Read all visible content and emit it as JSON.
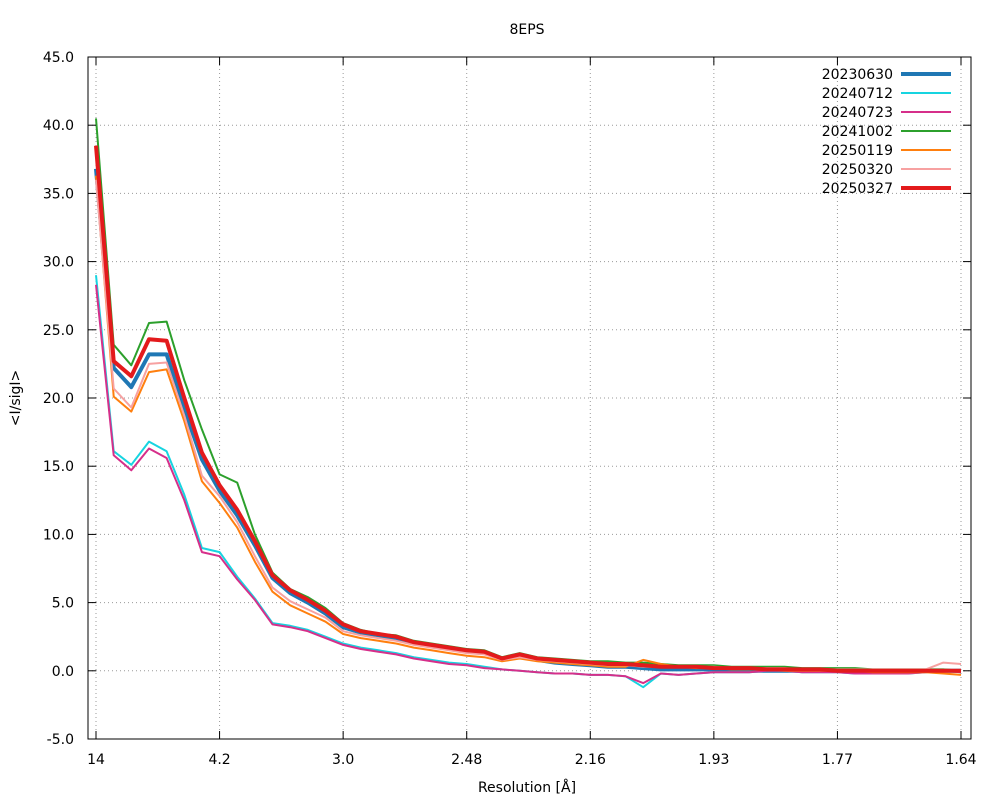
{
  "chart_data": {
    "type": "line",
    "title": "8EPS",
    "xlabel": "Resolution [Å]",
    "ylabel": "<I/sigI>",
    "ylim": [
      -5.0,
      45.0
    ],
    "yticks": [
      "-5.0",
      "0.0",
      "5.0",
      "10.0",
      "15.0",
      "20.0",
      "25.0",
      "30.0",
      "35.0",
      "40.0",
      "45.0"
    ],
    "xticks": [
      "14",
      "4.2",
      "3.0",
      "2.48",
      "2.16",
      "1.93",
      "1.77",
      "1.64"
    ],
    "grid": true,
    "legend_position": "top-right",
    "x": [
      "14",
      "",
      "",
      "",
      "",
      "4.2",
      "",
      "",
      "",
      "",
      "3.0",
      "",
      "",
      "",
      "",
      "2.48",
      "",
      "",
      "",
      "",
      "2.16",
      "",
      "",
      "",
      "",
      "",
      "",
      "",
      "",
      "",
      "",
      "",
      "",
      "",
      "",
      "",
      "",
      "",
      "",
      "",
      "",
      "",
      "",
      "",
      "",
      "",
      "",
      "",
      "",
      "1.64"
    ],
    "series": [
      {
        "name": "20230630",
        "color": "#1f77b4",
        "width": "thick",
        "values": [
          36.8,
          22.2,
          20.8,
          23.2,
          23.2,
          19.2,
          15.5,
          13.2,
          11.4,
          9.2,
          6.8,
          5.7,
          5.0,
          4.2,
          3.2,
          2.8,
          2.6,
          2.4,
          2.1,
          1.9,
          1.7,
          1.5,
          1.4,
          0.9,
          1.1,
          0.8,
          0.6,
          0.5,
          0.4,
          0.3,
          0.3,
          0.2,
          0.1,
          0.1,
          0.1,
          0.1,
          0.0,
          0.0,
          0.0,
          0.0,
          0.0,
          0.0,
          0.0,
          0.0,
          0.0,
          0.0,
          0.0,
          0.0,
          0.0,
          0.0
        ]
      },
      {
        "name": "20240712",
        "color": "#17d4e0",
        "width": "thin",
        "values": [
          29.0,
          16.1,
          15.1,
          16.8,
          16.1,
          12.9,
          9.0,
          8.7,
          6.9,
          5.3,
          3.5,
          3.3,
          3.0,
          2.5,
          2.0,
          1.7,
          1.5,
          1.3,
          1.0,
          0.8,
          0.6,
          0.5,
          0.3,
          0.1,
          0.0,
          -0.1,
          -0.2,
          -0.2,
          -0.3,
          -0.3,
          -0.4,
          -1.2,
          -0.2,
          -0.3,
          -0.2,
          -0.1,
          -0.1,
          -0.1,
          0.0,
          0.0,
          -0.1,
          -0.1,
          -0.1,
          -0.2,
          -0.2,
          -0.2,
          -0.2,
          -0.1,
          0.0,
          -0.1
        ]
      },
      {
        "name": "20240723",
        "color": "#d62f8a",
        "width": "thin",
        "values": [
          28.3,
          15.8,
          14.7,
          16.3,
          15.6,
          12.5,
          8.7,
          8.4,
          6.7,
          5.2,
          3.4,
          3.2,
          2.9,
          2.4,
          1.9,
          1.6,
          1.4,
          1.2,
          0.9,
          0.7,
          0.5,
          0.4,
          0.2,
          0.1,
          0.0,
          -0.1,
          -0.2,
          -0.2,
          -0.3,
          -0.3,
          -0.4,
          -0.9,
          -0.2,
          -0.3,
          -0.2,
          -0.1,
          -0.1,
          -0.1,
          0.0,
          0.0,
          -0.1,
          -0.1,
          -0.1,
          -0.2,
          -0.2,
          -0.2,
          -0.2,
          -0.1,
          0.0,
          -0.1
        ]
      },
      {
        "name": "20241002",
        "color": "#2ca02c",
        "width": "thin",
        "values": [
          40.5,
          23.9,
          22.4,
          25.5,
          25.6,
          21.3,
          17.7,
          14.4,
          13.8,
          10.0,
          7.2,
          6.0,
          5.4,
          4.6,
          3.5,
          3.0,
          2.7,
          2.6,
          2.2,
          2.0,
          1.8,
          1.6,
          1.5,
          1.0,
          1.3,
          1.0,
          0.9,
          0.8,
          0.7,
          0.7,
          0.6,
          0.6,
          0.5,
          0.4,
          0.4,
          0.4,
          0.3,
          0.3,
          0.3,
          0.3,
          0.2,
          0.2,
          0.2,
          0.2,
          0.1,
          0.1,
          0.1,
          0.1,
          0.1,
          0.0
        ]
      },
      {
        "name": "20250119",
        "color": "#ff7f0e",
        "width": "thin",
        "values": [
          36.3,
          20.1,
          19.0,
          21.9,
          22.1,
          18.3,
          13.9,
          12.3,
          10.5,
          8.0,
          5.8,
          4.8,
          4.2,
          3.6,
          2.7,
          2.4,
          2.2,
          2.0,
          1.7,
          1.5,
          1.3,
          1.1,
          1.0,
          0.7,
          0.9,
          0.7,
          0.6,
          0.5,
          0.4,
          0.3,
          0.3,
          0.8,
          0.5,
          0.3,
          0.2,
          0.2,
          0.1,
          0.1,
          0.1,
          0.0,
          0.0,
          0.0,
          0.0,
          0.0,
          -0.1,
          -0.1,
          -0.1,
          -0.1,
          -0.2,
          -0.3
        ]
      },
      {
        "name": "20250320",
        "color": "#f7a1a1",
        "width": "thin",
        "values": [
          36.0,
          20.7,
          19.3,
          22.5,
          22.6,
          18.7,
          14.3,
          12.8,
          10.9,
          8.4,
          6.1,
          5.1,
          4.5,
          3.9,
          2.9,
          2.6,
          2.4,
          2.2,
          1.9,
          1.7,
          1.5,
          1.3,
          1.2,
          0.8,
          1.0,
          0.8,
          0.7,
          0.6,
          0.5,
          0.4,
          0.4,
          0.3,
          0.3,
          0.3,
          0.3,
          0.3,
          0.2,
          0.2,
          0.2,
          0.2,
          0.1,
          0.1,
          0.1,
          0.1,
          0.1,
          0.1,
          0.1,
          0.1,
          0.6,
          0.5
        ]
      },
      {
        "name": "20250327",
        "color": "#e31a1c",
        "width": "thick",
        "values": [
          38.5,
          22.7,
          21.6,
          24.3,
          24.2,
          20.0,
          16.0,
          13.6,
          11.8,
          9.5,
          7.0,
          5.9,
          5.2,
          4.4,
          3.4,
          2.9,
          2.7,
          2.5,
          2.1,
          1.9,
          1.7,
          1.5,
          1.4,
          0.9,
          1.2,
          0.9,
          0.8,
          0.7,
          0.6,
          0.5,
          0.5,
          0.4,
          0.3,
          0.3,
          0.3,
          0.2,
          0.2,
          0.2,
          0.1,
          0.1,
          0.1,
          0.1,
          0.0,
          0.0,
          0.0,
          0.0,
          0.0,
          0.0,
          0.0,
          0.0
        ]
      }
    ]
  }
}
